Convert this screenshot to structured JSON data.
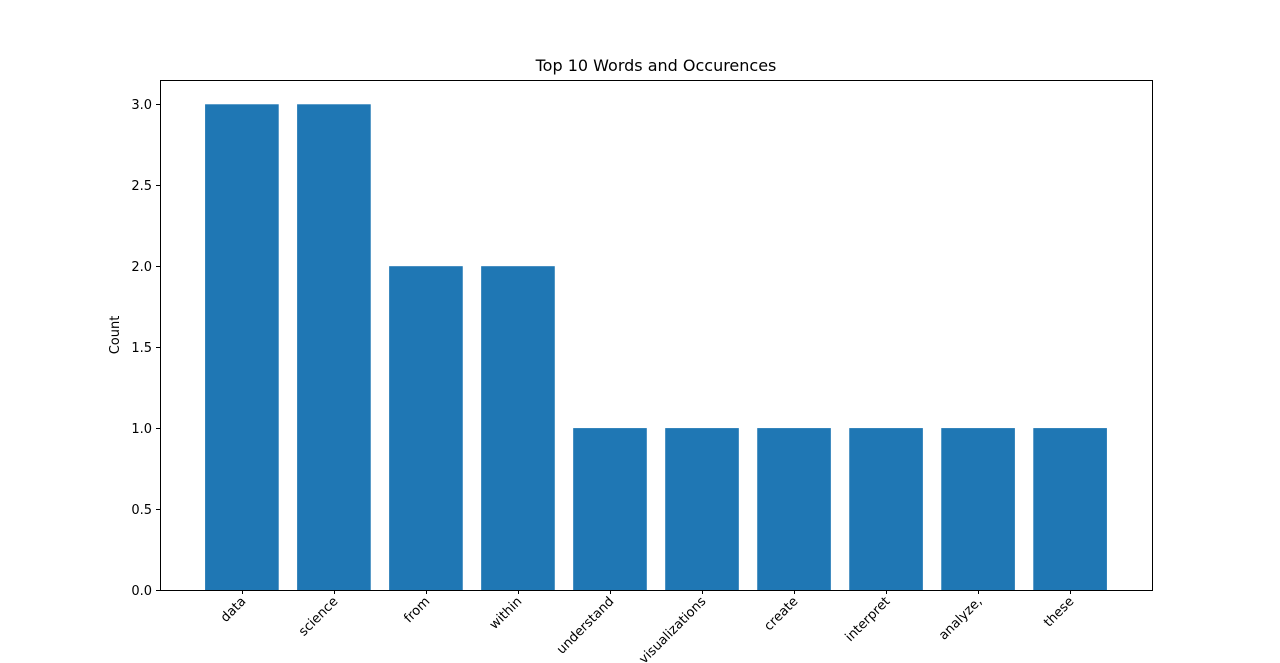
{
  "chart_data": {
    "type": "bar",
    "title": "Top 10 Words and Occurences",
    "xlabel": "",
    "ylabel": "Count",
    "categories": [
      "data",
      "science",
      "from",
      "within",
      "understand",
      "visualizations",
      "create",
      "interpret",
      "analyze,",
      "these"
    ],
    "values": [
      3,
      3,
      2,
      2,
      1,
      1,
      1,
      1,
      1,
      1
    ],
    "ylim": [
      0,
      3.15
    ],
    "yticks": [
      0.0,
      0.5,
      1.0,
      1.5,
      2.0,
      2.5,
      3.0
    ],
    "ytick_labels": [
      "0.0",
      "0.5",
      "1.0",
      "1.5",
      "2.0",
      "2.5",
      "3.0"
    ],
    "bar_color": "#1f77b4",
    "grid": false,
    "legend": "none",
    "xtick_rotation": -45
  }
}
